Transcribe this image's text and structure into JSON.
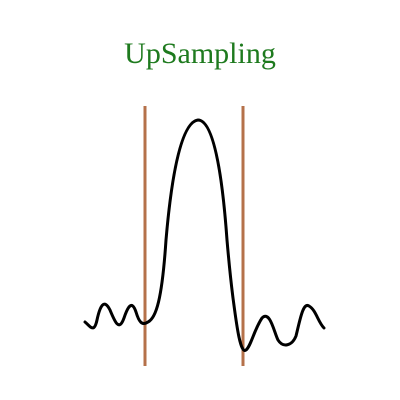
{
  "title": "UpSampling",
  "colors": {
    "title": "#1e7a1e",
    "waveform": "#000000",
    "boundary_lines": "#b5714a",
    "background": "#ffffff"
  }
}
